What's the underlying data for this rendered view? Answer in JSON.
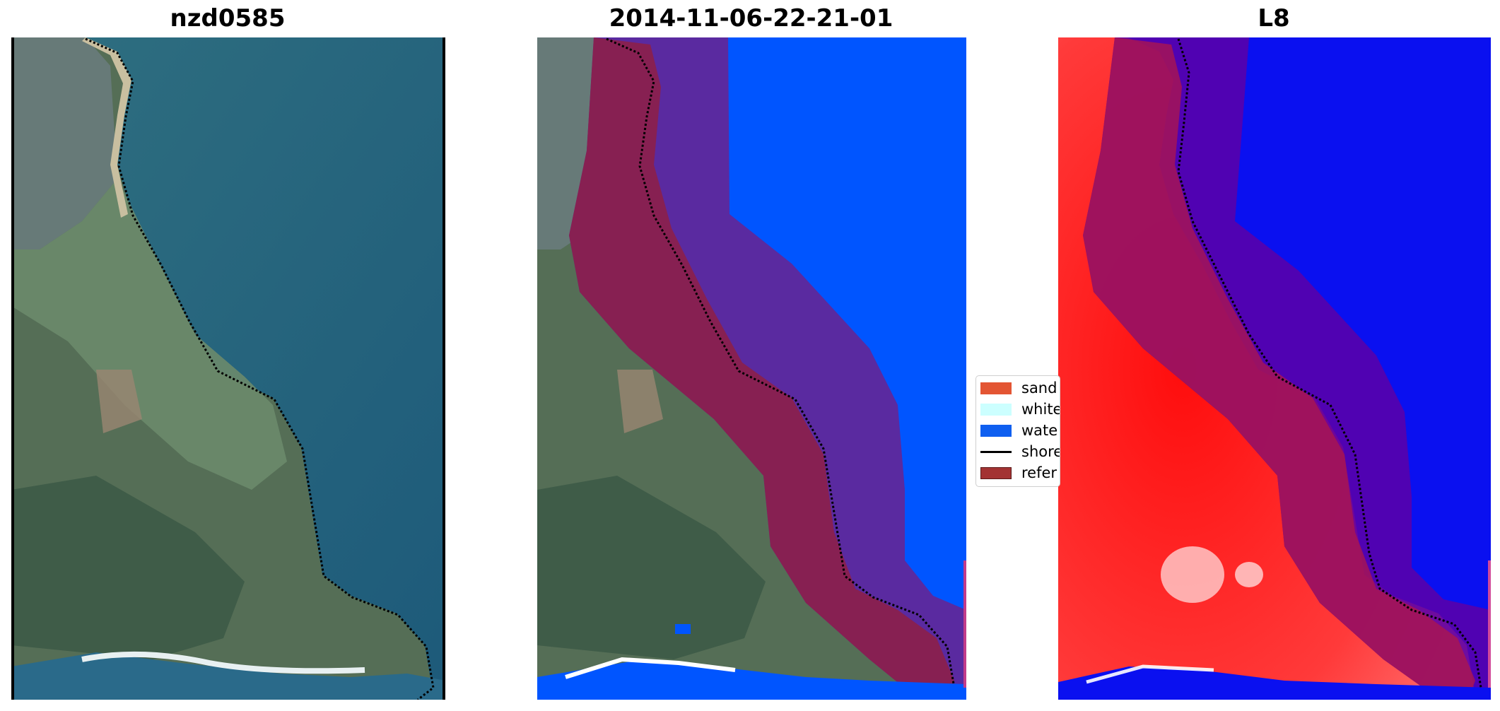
{
  "panels": [
    {
      "title": "nzd0585"
    },
    {
      "title": "2014-11-06-22-21-01"
    },
    {
      "title": "L8"
    }
  ],
  "legend": {
    "items": [
      {
        "label": "sand",
        "color": "#e35533",
        "kind": "patch"
      },
      {
        "label": "white",
        "color": "#ccffff",
        "kind": "patch"
      },
      {
        "label": "wate",
        "color": "#0f5ff0",
        "kind": "patch"
      },
      {
        "label": "shore",
        "color": "#000000",
        "kind": "line"
      },
      {
        "label": "refer",
        "color": "#a33333",
        "kind": "patch"
      }
    ]
  },
  "colors": {
    "water_deep": "#1f5f7d",
    "land_green": "#4f7a5a",
    "water_class": "#0055ff",
    "reference_overlay": "#8b1f4b",
    "buffer_overlay": "#5a2aa0",
    "l8_red": "#ff2a2a",
    "l8_blue": "#0a10f0"
  }
}
